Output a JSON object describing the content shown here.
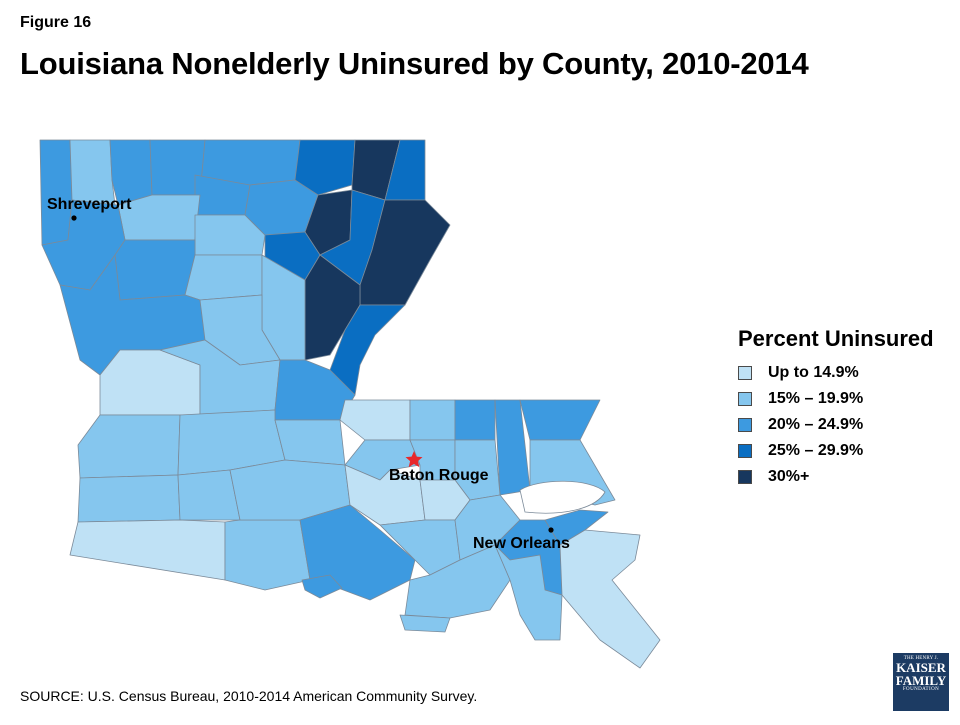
{
  "figure_label": "Figure 16",
  "title": "Louisiana Nonelderly Uninsured by County, 2010-2014",
  "legend": {
    "title": "Percent Uninsured",
    "items": [
      {
        "label": "Up to 14.9%",
        "color": "#bfe1f5"
      },
      {
        "label": "15% – 19.9%",
        "color": "#85c6ee"
      },
      {
        "label": "20% – 24.9%",
        "color": "#3d9ae0"
      },
      {
        "label": "25% –  29.9%",
        "color": "#0a6ec2"
      },
      {
        "label": "30%+",
        "color": "#17375e"
      }
    ]
  },
  "cities": [
    {
      "name": "Shreveport",
      "marker": "dot"
    },
    {
      "name": "Baton Rouge",
      "marker": "star",
      "marker_color": "#e8282b"
    },
    {
      "name": "New Orleans",
      "marker": "dot"
    }
  ],
  "source": "SOURCE: U.S. Census Bureau, 2010-2014 American Community Survey.",
  "logo": {
    "line1": "THE HENRY J.",
    "line2": "KAISER",
    "line3": "FAMILY",
    "line4": "FOUNDATION"
  }
}
